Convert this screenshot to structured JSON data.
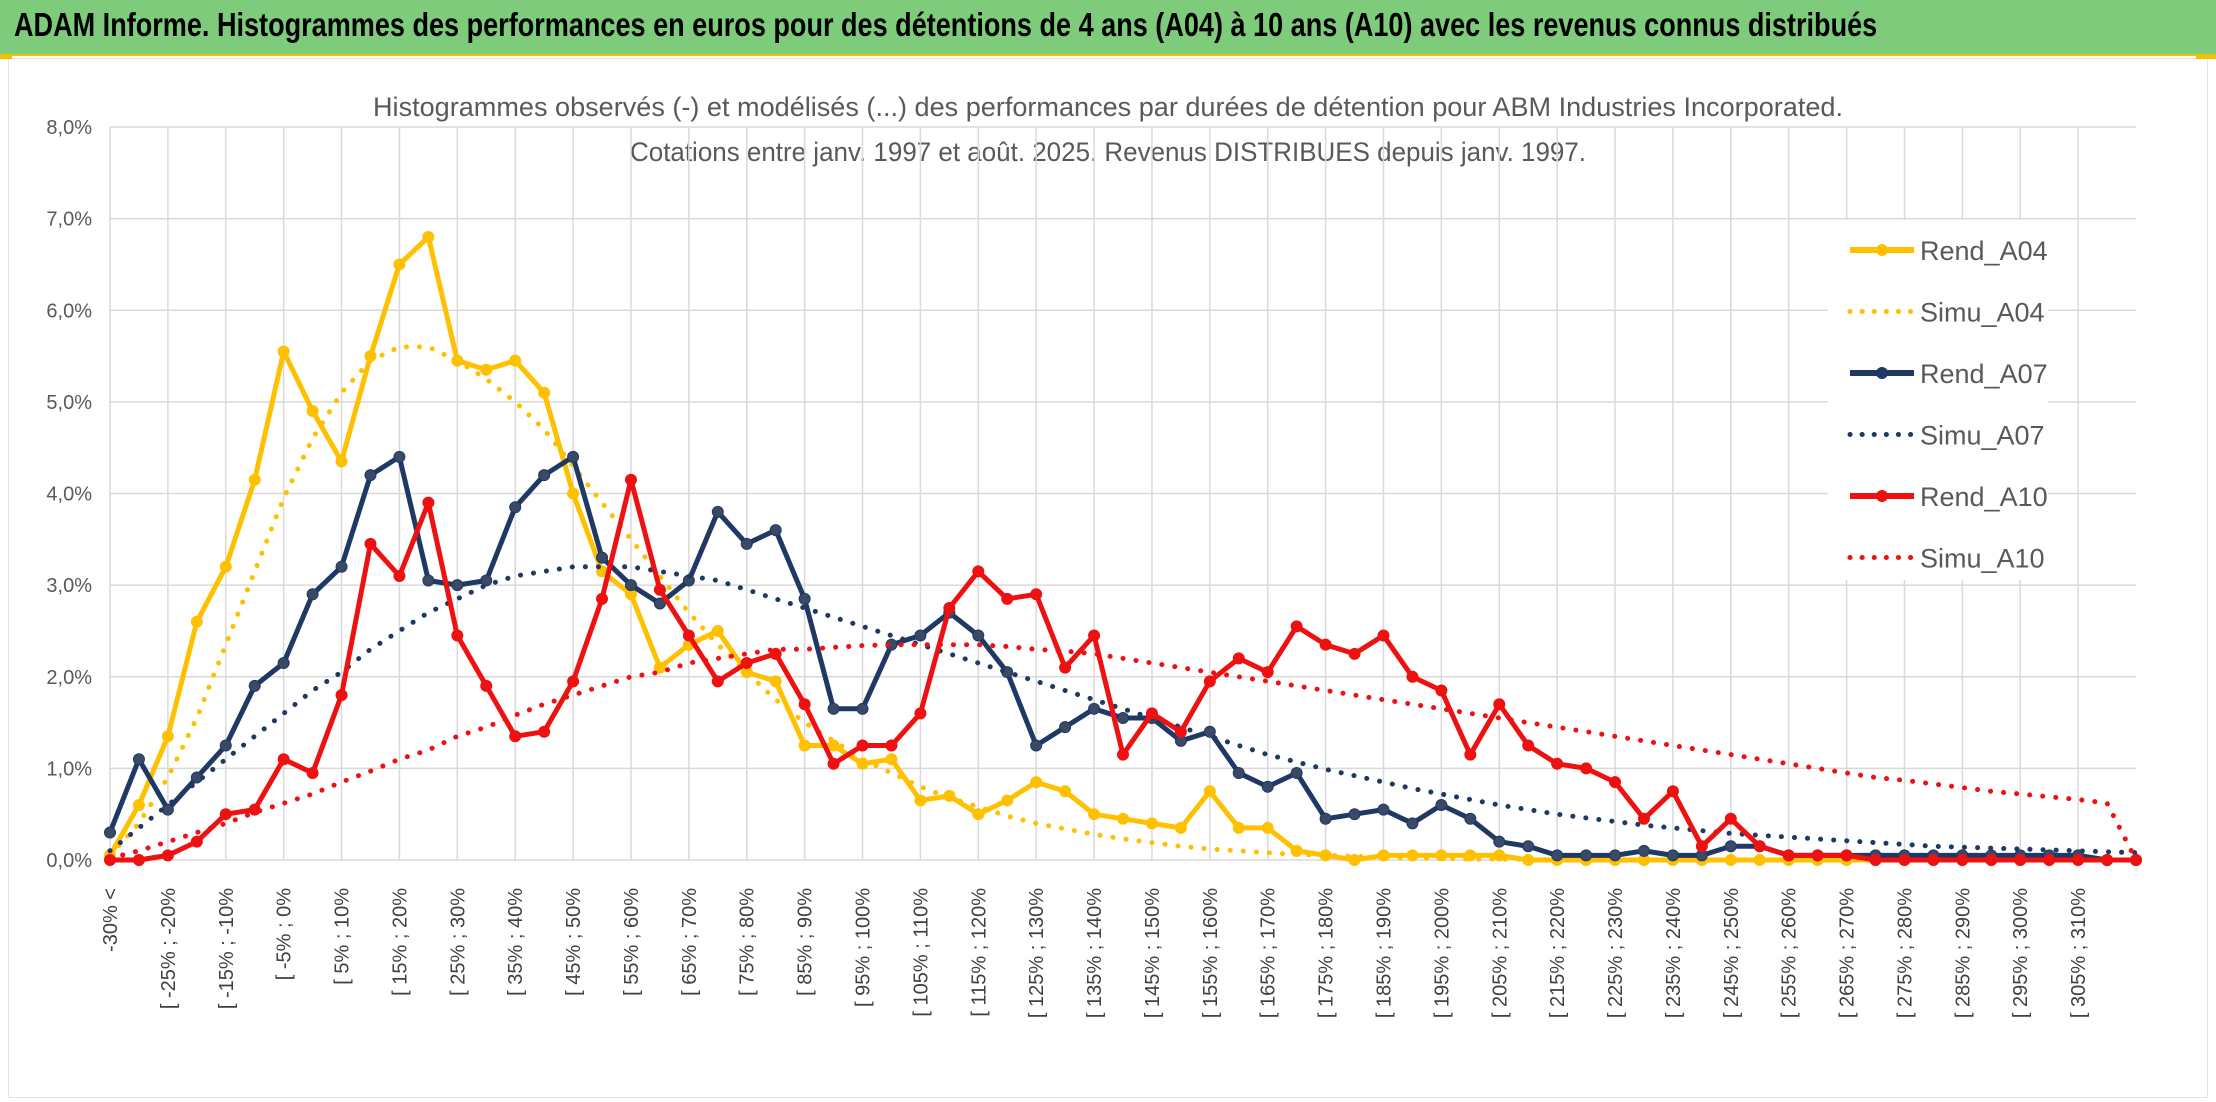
{
  "banner": {
    "title": "ADAM Informe. Histogrammes des performances en euros pour des détentions de 4 ans (A04) à 10 ans (A10) avec les revenus connus distribués"
  },
  "colors": {
    "banner_bg": "#7ecb7c",
    "accent": "#f2c200",
    "A04": "#FFC000",
    "A07": "#1F3864",
    "A10": "#EE1111",
    "grid": "#d9d9d9"
  },
  "chart_data": {
    "type": "line",
    "title_line1": "Histogrammes observés (-) et modélisés (...) des performances par durées de détention pour ABM Industries Incorporated.",
    "title_line2": "Cotations entre janv. 1997 et août. 2025. Revenus DISTRIBUES depuis janv. 1997.",
    "xlabel": "",
    "ylabel": "",
    "ylim": [
      0,
      8
    ],
    "y_ticks": [
      "0,0%",
      "1,0%",
      "2,0%",
      "3,0%",
      "4,0%",
      "5,0%",
      "6,0%",
      "7,0%",
      "8,0%"
    ],
    "grid": "vertical and horizontal",
    "legend_position": "right",
    "point_count": 71,
    "x_tick_labels": [
      "-30% <",
      "[ -25% ; -20%",
      "[ -15% ; -10%",
      "[ -5% ; 0%",
      "[ 5% ; 10%",
      "[ 15% ; 20%",
      "[ 25% ; 30%",
      "[ 35% ; 40%",
      "[ 45% ; 50%",
      "[ 55% ; 60%",
      "[ 65% ; 70%",
      "[ 75% ; 80%",
      "[ 85% ; 90%",
      "[ 95% ; 100%",
      "[ 105% ; 110%",
      "[ 115% ; 120%",
      "[ 125% ; 130%",
      "[ 135% ; 140%",
      "[ 145% ; 150%",
      "[ 155% ; 160%",
      "[ 165% ; 170%",
      "[ 175% ; 180%",
      "[ 185% ; 190%",
      "[ 195% ; 200%",
      "[ 205% ; 210%",
      "[ 215% ; 220%",
      "[ 225% ; 230%",
      "[ 235% ; 240%",
      "[ 245% ; 250%",
      "[ 255% ; 260%",
      "[ 265% ; 270%",
      "[ 275% ; 280%",
      "[ 285% ; 290%",
      "[ 295% ; 300%",
      "[ 305% ; 310%"
    ],
    "series": [
      {
        "name": "Rend_A04",
        "style": "solid",
        "color": "#FFC000",
        "values": [
          0.05,
          0.6,
          1.35,
          2.6,
          3.2,
          4.15,
          5.55,
          4.9,
          4.35,
          5.5,
          6.5,
          6.8,
          5.45,
          5.35,
          5.45,
          5.1,
          4.0,
          3.15,
          2.9,
          2.1,
          2.35,
          2.5,
          2.05,
          1.95,
          1.25,
          1.25,
          1.05,
          1.1,
          0.65,
          0.7,
          0.5,
          0.65,
          0.85,
          0.75,
          0.5,
          0.45,
          0.4,
          0.35,
          0.75,
          0.35,
          0.35,
          0.1,
          0.05,
          0.0,
          0.05,
          0.05,
          0.05,
          0.05,
          0.05,
          0.0,
          0.0,
          0.0,
          0.0,
          0.0,
          0.0,
          0.0,
          0.0,
          0.0,
          0.0,
          0.0,
          0.0,
          0.0,
          0.0,
          0.0,
          0.0,
          0.0,
          0.0,
          0.0,
          0.0,
          0.0,
          0.0
        ]
      },
      {
        "name": "Simu_A04",
        "style": "dotted",
        "color": "#FFC000",
        "values": [
          0.05,
          0.4,
          0.9,
          1.55,
          2.35,
          3.15,
          3.95,
          4.6,
          5.1,
          5.45,
          5.6,
          5.6,
          5.45,
          5.25,
          5.0,
          4.7,
          4.3,
          3.9,
          3.5,
          3.1,
          2.7,
          2.35,
          2.05,
          1.75,
          1.5,
          1.3,
          1.1,
          0.95,
          0.8,
          0.68,
          0.58,
          0.48,
          0.4,
          0.34,
          0.28,
          0.23,
          0.19,
          0.15,
          0.12,
          0.1,
          0.08,
          0.06,
          0.05,
          0.04,
          0.03,
          0.02,
          0.02,
          0.01,
          0.01,
          0.01,
          0.0,
          0.0,
          0.0,
          0.0,
          0.0,
          0.0,
          0.0,
          0.0,
          0.0,
          0.0,
          0.0,
          0.0,
          0.0,
          0.0,
          0.0,
          0.0,
          0.0,
          0.0,
          0.0,
          0.0,
          0.0
        ]
      },
      {
        "name": "Rend_A07",
        "style": "solid",
        "color": "#1F3864",
        "values": [
          0.3,
          1.1,
          0.55,
          0.9,
          1.25,
          1.9,
          2.15,
          2.9,
          3.2,
          4.2,
          4.4,
          3.05,
          3.0,
          3.05,
          3.85,
          4.2,
          4.4,
          3.3,
          3.0,
          2.8,
          3.05,
          3.8,
          3.45,
          3.6,
          2.85,
          1.65,
          1.65,
          2.35,
          2.45,
          2.7,
          2.45,
          2.05,
          1.25,
          1.45,
          1.65,
          1.55,
          1.55,
          1.3,
          1.4,
          0.95,
          0.8,
          0.95,
          0.45,
          0.5,
          0.55,
          0.4,
          0.6,
          0.45,
          0.2,
          0.15,
          0.05,
          0.05,
          0.05,
          0.1,
          0.05,
          0.05,
          0.15,
          0.15,
          0.05,
          0.05,
          0.05,
          0.05,
          0.05,
          0.05,
          0.05,
          0.05,
          0.05,
          0.05,
          0.05,
          0.0,
          0.0
        ]
      },
      {
        "name": "Simu_A07",
        "style": "dotted",
        "color": "#1F3864",
        "values": [
          0.1,
          0.35,
          0.6,
          0.85,
          1.1,
          1.35,
          1.6,
          1.85,
          2.05,
          2.3,
          2.5,
          2.7,
          2.85,
          3.0,
          3.1,
          3.15,
          3.2,
          3.2,
          3.2,
          3.15,
          3.1,
          3.05,
          2.95,
          2.85,
          2.75,
          2.65,
          2.55,
          2.45,
          2.35,
          2.25,
          2.15,
          2.05,
          1.95,
          1.85,
          1.75,
          1.65,
          1.55,
          1.45,
          1.35,
          1.25,
          1.15,
          1.07,
          0.99,
          0.92,
          0.85,
          0.78,
          0.72,
          0.66,
          0.6,
          0.55,
          0.5,
          0.46,
          0.42,
          0.38,
          0.35,
          0.32,
          0.29,
          0.27,
          0.25,
          0.23,
          0.21,
          0.19,
          0.17,
          0.15,
          0.14,
          0.13,
          0.12,
          0.11,
          0.1,
          0.09,
          0.08
        ]
      },
      {
        "name": "Rend_A10",
        "style": "solid",
        "color": "#EE1111",
        "values": [
          0.0,
          0.0,
          0.05,
          0.2,
          0.5,
          0.55,
          1.1,
          0.95,
          1.8,
          3.45,
          3.1,
          3.9,
          2.45,
          1.9,
          1.35,
          1.4,
          1.95,
          2.85,
          4.15,
          2.95,
          2.45,
          1.95,
          2.15,
          2.25,
          1.7,
          1.05,
          1.25,
          1.25,
          1.6,
          2.75,
          3.15,
          2.85,
          2.9,
          2.1,
          2.45,
          1.15,
          1.6,
          1.4,
          1.95,
          2.2,
          2.05,
          2.55,
          2.35,
          2.25,
          2.45,
          2.0,
          1.85,
          1.15,
          1.7,
          1.25,
          1.05,
          1.0,
          0.85,
          0.45,
          0.75,
          0.15,
          0.45,
          0.15,
          0.05,
          0.05,
          0.05,
          0.0,
          0.0,
          0.0,
          0.0,
          0.0,
          0.0,
          0.0,
          0.0,
          0.0,
          0.0
        ]
      },
      {
        "name": "Simu_A10",
        "style": "dotted",
        "color": "#EE1111",
        "values": [
          0.02,
          0.1,
          0.2,
          0.3,
          0.4,
          0.52,
          0.62,
          0.72,
          0.85,
          0.97,
          1.1,
          1.2,
          1.35,
          1.45,
          1.58,
          1.7,
          1.8,
          1.9,
          2.0,
          2.05,
          2.15,
          2.2,
          2.25,
          2.3,
          2.3,
          2.32,
          2.34,
          2.35,
          2.35,
          2.35,
          2.35,
          2.33,
          2.3,
          2.28,
          2.25,
          2.2,
          2.15,
          2.1,
          2.05,
          2.0,
          1.95,
          1.9,
          1.85,
          1.8,
          1.75,
          1.7,
          1.65,
          1.6,
          1.55,
          1.5,
          1.45,
          1.4,
          1.35,
          1.3,
          1.25,
          1.2,
          1.15,
          1.1,
          1.05,
          1.0,
          0.95,
          0.9,
          0.87,
          0.83,
          0.79,
          0.75,
          0.72,
          0.69,
          0.66,
          0.62,
          0.0
        ]
      }
    ]
  }
}
